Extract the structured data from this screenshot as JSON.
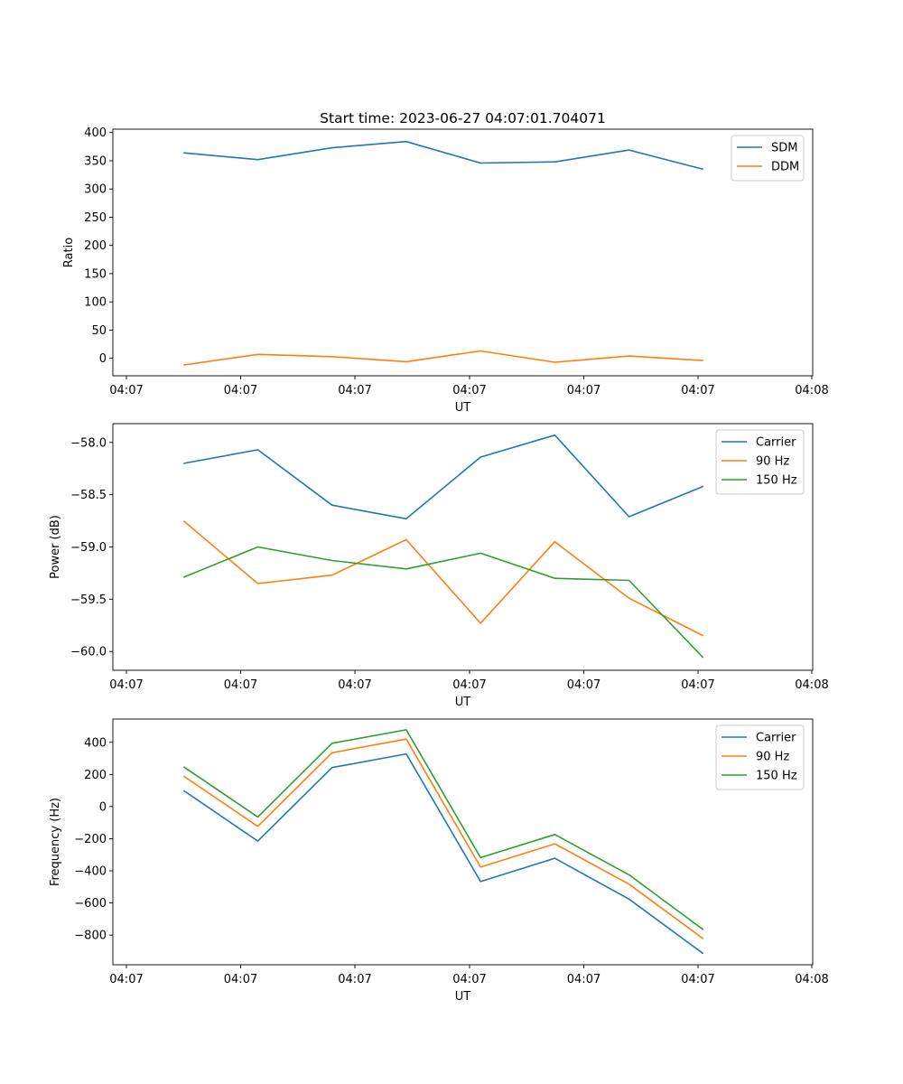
{
  "figure_title": "Start time: 2023-06-27 04:07:01.704071",
  "chart_data": [
    {
      "type": "line",
      "title": "Start time: 2023-06-27 04:07:01.704071",
      "xlabel": "UT",
      "ylabel": "Ratio",
      "x_tick_labels": [
        "04:07",
        "04:07",
        "04:07",
        "04:07",
        "04:07",
        "04:07",
        "04:08"
      ],
      "y_ticks": [
        0,
        50,
        100,
        150,
        200,
        250,
        300,
        350,
        400
      ],
      "y_tick_labels": [
        "0",
        "50",
        "100",
        "150",
        "200",
        "250",
        "300",
        "350",
        "400"
      ],
      "xlim": [
        0,
        6
      ],
      "ylim": [
        -31,
        406
      ],
      "x": [
        0.5,
        1.15,
        1.8,
        2.45,
        3.1,
        3.75,
        4.4,
        5.05
      ],
      "series": [
        {
          "name": "SDM",
          "color": "#1f77b4",
          "values": [
            364,
            352,
            373,
            384,
            346,
            348,
            369,
            335
          ]
        },
        {
          "name": "DDM",
          "color": "#ff7f0e",
          "values": [
            -12,
            7,
            3,
            -6,
            13,
            -7,
            4,
            -4
          ]
        }
      ],
      "legend": "upper-right",
      "grid": false
    },
    {
      "type": "line",
      "xlabel": "UT",
      "ylabel": "Power (dB)",
      "x_tick_labels": [
        "04:07",
        "04:07",
        "04:07",
        "04:07",
        "04:07",
        "04:07",
        "04:08"
      ],
      "y_ticks": [
        -58.0,
        -58.5,
        -59.0,
        -59.5,
        -60.0
      ],
      "y_tick_labels": [
        "−58.0",
        "−58.5",
        "−59.0",
        "−59.5",
        "−60.0"
      ],
      "xlim": [
        0,
        6
      ],
      "ylim": [
        -60.18,
        -57.82
      ],
      "x": [
        0.5,
        1.15,
        1.8,
        2.45,
        3.1,
        3.75,
        4.4,
        5.05
      ],
      "series": [
        {
          "name": "Carrier",
          "color": "#1f77b4",
          "values": [
            -58.2,
            -58.07,
            -58.6,
            -58.73,
            -58.14,
            -57.93,
            -58.71,
            -58.42
          ]
        },
        {
          "name": "90 Hz",
          "color": "#ff7f0e",
          "values": [
            -58.75,
            -59.35,
            -59.27,
            -58.93,
            -59.73,
            -58.95,
            -59.49,
            -59.85
          ]
        },
        {
          "name": "150 Hz",
          "color": "#2ca02c",
          "values": [
            -59.29,
            -59.0,
            -59.13,
            -59.21,
            -59.06,
            -59.3,
            -59.32,
            -60.06
          ]
        }
      ],
      "legend": "upper-right",
      "grid": false
    },
    {
      "type": "line",
      "xlabel": "UT",
      "ylabel": "Frequency (Hz)",
      "x_tick_labels": [
        "04:07",
        "04:07",
        "04:07",
        "04:07",
        "04:07",
        "04:07",
        "04:08"
      ],
      "y_ticks": [
        400,
        200,
        0,
        -200,
        -400,
        -600,
        -800
      ],
      "y_tick_labels": [
        "400",
        "200",
        "0",
        "−200",
        "−400",
        "−600",
        "−800"
      ],
      "xlim": [
        0,
        6
      ],
      "ylim": [
        -985,
        545
      ],
      "x": [
        0.5,
        1.15,
        1.8,
        2.45,
        3.1,
        3.75,
        4.4,
        5.05
      ],
      "series": [
        {
          "name": "Carrier",
          "color": "#1f77b4",
          "values": [
            100,
            -215,
            243,
            328,
            -467,
            -322,
            -576,
            -916
          ]
        },
        {
          "name": "90 Hz",
          "color": "#ff7f0e",
          "values": [
            190,
            -123,
            335,
            420,
            -377,
            -232,
            -483,
            -823
          ]
        },
        {
          "name": "150 Hz",
          "color": "#2ca02c",
          "values": [
            248,
            -65,
            394,
            478,
            -318,
            -174,
            -425,
            -766
          ]
        }
      ],
      "legend": "upper-right",
      "grid": false
    }
  ]
}
